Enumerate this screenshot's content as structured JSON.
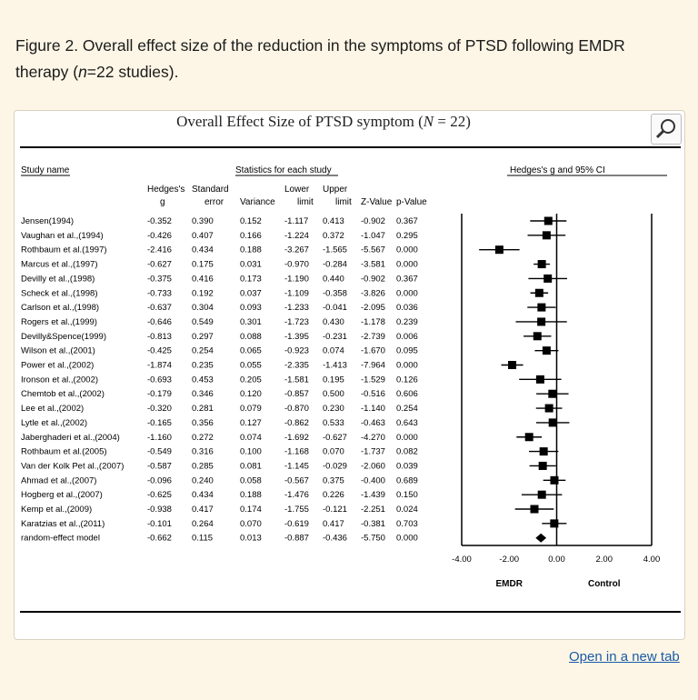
{
  "caption": {
    "figure_label": "Figure 2.",
    "text_before_n": " Overall effect size of the reduction in the symptoms of PTSD following EMDR therapy (",
    "n_symbol": "n",
    "text_after_n": "=22 studies)."
  },
  "figure": {
    "title_before": "Overall Effect Size of PTSD symptom (",
    "title_symbol": "N",
    "title_after": " = 22)",
    "zoom_icon": "magnifier-icon"
  },
  "link": {
    "open_new_tab": "Open in a new tab"
  },
  "chart_data": {
    "type": "forest",
    "title": "Overall Effect Size of PTSD symptom (N = 22)",
    "headers": {
      "study_name": "Study name",
      "statistics": "Statistics for each study",
      "plot": "Hedges's g and 95% CI",
      "columns": [
        [
          "Hedges's",
          "g"
        ],
        [
          "Standard",
          "error"
        ],
        [
          "",
          "Variance"
        ],
        [
          "Lower",
          "limit"
        ],
        [
          "Upper",
          "limit"
        ],
        [
          "",
          "Z-Value"
        ],
        [
          "",
          "p-Value"
        ]
      ]
    },
    "studies": [
      {
        "name": "Jensen(1994)",
        "g": "-0.352",
        "se": "0.390",
        "var": "0.152",
        "lower": "-1.117",
        "upper": "0.413",
        "z": "-0.902",
        "p": "0.367"
      },
      {
        "name": "Vaughan  et al.,(1994)",
        "g": "-0.426",
        "se": "0.407",
        "var": "0.166",
        "lower": "-1.224",
        "upper": "0.372",
        "z": "-1.047",
        "p": "0.295"
      },
      {
        "name": "Rothbaum et al.(1997)",
        "g": "-2.416",
        "se": "0.434",
        "var": "0.188",
        "lower": "-3.267",
        "upper": "-1.565",
        "z": "-5.567",
        "p": "0.000"
      },
      {
        "name": "Marcus et al.,(1997)",
        "g": "-0.627",
        "se": "0.175",
        "var": "0.031",
        "lower": "-0.970",
        "upper": "-0.284",
        "z": "-3.581",
        "p": "0.000"
      },
      {
        "name": "Devilly et al.,(1998)",
        "g": "-0.375",
        "se": "0.416",
        "var": "0.173",
        "lower": "-1.190",
        "upper": "0.440",
        "z": "-0.902",
        "p": "0.367"
      },
      {
        "name": "Scheck et al.,(1998)",
        "g": "-0.733",
        "se": "0.192",
        "var": "0.037",
        "lower": "-1.109",
        "upper": "-0.358",
        "z": "-3.826",
        "p": "0.000"
      },
      {
        "name": "Carlson et al.,(1998)",
        "g": "-0.637",
        "se": "0.304",
        "var": "0.093",
        "lower": "-1.233",
        "upper": "-0.041",
        "z": "-2.095",
        "p": "0.036"
      },
      {
        "name": "Rogers et al.,(1999)",
        "g": "-0.646",
        "se": "0.549",
        "var": "0.301",
        "lower": "-1.723",
        "upper": "0.430",
        "z": "-1.178",
        "p": "0.239"
      },
      {
        "name": "Devilly&Spence(1999)",
        "g": "-0.813",
        "se": "0.297",
        "var": "0.088",
        "lower": "-1.395",
        "upper": "-0.231",
        "z": "-2.739",
        "p": "0.006"
      },
      {
        "name": "Wilson et al.,(2001)",
        "g": "-0.425",
        "se": "0.254",
        "var": "0.065",
        "lower": "-0.923",
        "upper": "0.074",
        "z": "-1.670",
        "p": "0.095"
      },
      {
        "name": "Power  et al.,(2002)",
        "g": "-1.874",
        "se": "0.235",
        "var": "0.055",
        "lower": "-2.335",
        "upper": "-1.413",
        "z": "-7.964",
        "p": "0.000"
      },
      {
        "name": "Ironson et al.,(2002)",
        "g": "-0.693",
        "se": "0.453",
        "var": "0.205",
        "lower": "-1.581",
        "upper": "0.195",
        "z": "-1.529",
        "p": "0.126"
      },
      {
        "name": "Chemtob et al.,(2002)",
        "g": "-0.179",
        "se": "0.346",
        "var": "0.120",
        "lower": "-0.857",
        "upper": "0.500",
        "z": "-0.516",
        "p": "0.606"
      },
      {
        "name": "Lee et al.,(2002)",
        "g": "-0.320",
        "se": "0.281",
        "var": "0.079",
        "lower": "-0.870",
        "upper": "0.230",
        "z": "-1.140",
        "p": "0.254"
      },
      {
        "name": "Lytle et al.,(2002)",
        "g": "-0.165",
        "se": "0.356",
        "var": "0.127",
        "lower": "-0.862",
        "upper": "0.533",
        "z": "-0.463",
        "p": "0.643"
      },
      {
        "name": "Jaberghaderi et al.,(2004)",
        "g": "-1.160",
        "se": "0.272",
        "var": "0.074",
        "lower": "-1.692",
        "upper": "-0.627",
        "z": "-4.270",
        "p": "0.000"
      },
      {
        "name": "Rothbaum et al.(2005)",
        "g": "-0.549",
        "se": "0.316",
        "var": "0.100",
        "lower": "-1.168",
        "upper": "0.070",
        "z": "-1.737",
        "p": "0.082"
      },
      {
        "name": "Van der Kolk Pet al.,(2007)",
        "g": "-0.587",
        "se": "0.285",
        "var": "0.081",
        "lower": "-1.145",
        "upper": "-0.029",
        "z": "-2.060",
        "p": "0.039"
      },
      {
        "name": "Ahmad et al.,(2007)",
        "g": "-0.096",
        "se": "0.240",
        "var": "0.058",
        "lower": "-0.567",
        "upper": "0.375",
        "z": "-0.400",
        "p": "0.689"
      },
      {
        "name": "Hogberg et al.,(2007)",
        "g": "-0.625",
        "se": "0.434",
        "var": "0.188",
        "lower": "-1.476",
        "upper": "0.226",
        "z": "-1.439",
        "p": "0.150"
      },
      {
        "name": "Kemp et al.,(2009)",
        "g": "-0.938",
        "se": "0.417",
        "var": "0.174",
        "lower": "-1.755",
        "upper": "-0.121",
        "z": "-2.251",
        "p": "0.024"
      },
      {
        "name": "Karatzias et al.,(2011)",
        "g": "-0.101",
        "se": "0.264",
        "var": "0.070",
        "lower": "-0.619",
        "upper": "0.417",
        "z": "-0.381",
        "p": "0.703"
      }
    ],
    "summary": {
      "name": "random-effect model",
      "g": "-0.662",
      "se": "0.115",
      "var": "0.013",
      "lower": "-0.887",
      "upper": "-0.436",
      "z": "-5.750",
      "p": "0.000"
    },
    "xlim": [
      -4,
      4
    ],
    "xticks": [
      "-4.00",
      "-2.00",
      "0.00",
      "2.00",
      "4.00"
    ],
    "favours_left": "EMDR",
    "favours_right": "Control"
  }
}
